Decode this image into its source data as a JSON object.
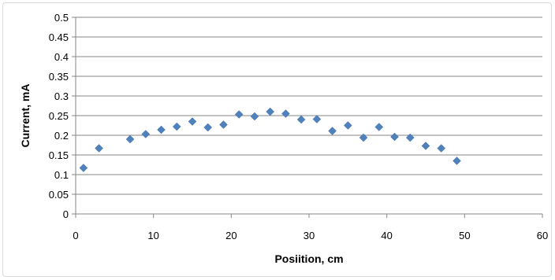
{
  "chart_data": {
    "type": "scatter",
    "title": "",
    "xlabel": "Posiition, cm",
    "ylabel": "Current, mA",
    "xlim": [
      0,
      60
    ],
    "ylim": [
      0,
      0.5
    ],
    "x_ticks": [
      0,
      10,
      20,
      30,
      40,
      50,
      60
    ],
    "x_tick_labels": [
      "0",
      "10",
      "20",
      "30",
      "40",
      "50",
      "60"
    ],
    "y_ticks": [
      0,
      0.05,
      0.1,
      0.15,
      0.2,
      0.25,
      0.3,
      0.35,
      0.4,
      0.45,
      0.5
    ],
    "y_tick_labels": [
      "0",
      "0.05",
      "0.1",
      "0.15",
      "0.2",
      "0.25",
      "0.3",
      "0.35",
      "0.4",
      "0.45",
      "0.5"
    ],
    "grid": "horizontal",
    "legend": "none",
    "marker_color": "#4f81bd",
    "series": [
      {
        "x": [
          1,
          3,
          7,
          9,
          11,
          13,
          15,
          17,
          19,
          21,
          23,
          25,
          27,
          29,
          31,
          33,
          35,
          37,
          39,
          41,
          43,
          45,
          47,
          49
        ],
        "y": [
          0.117,
          0.167,
          0.19,
          0.203,
          0.214,
          0.222,
          0.235,
          0.22,
          0.227,
          0.253,
          0.248,
          0.26,
          0.255,
          0.24,
          0.241,
          0.211,
          0.225,
          0.194,
          0.221,
          0.196,
          0.194,
          0.173,
          0.167,
          0.135
        ]
      }
    ]
  }
}
